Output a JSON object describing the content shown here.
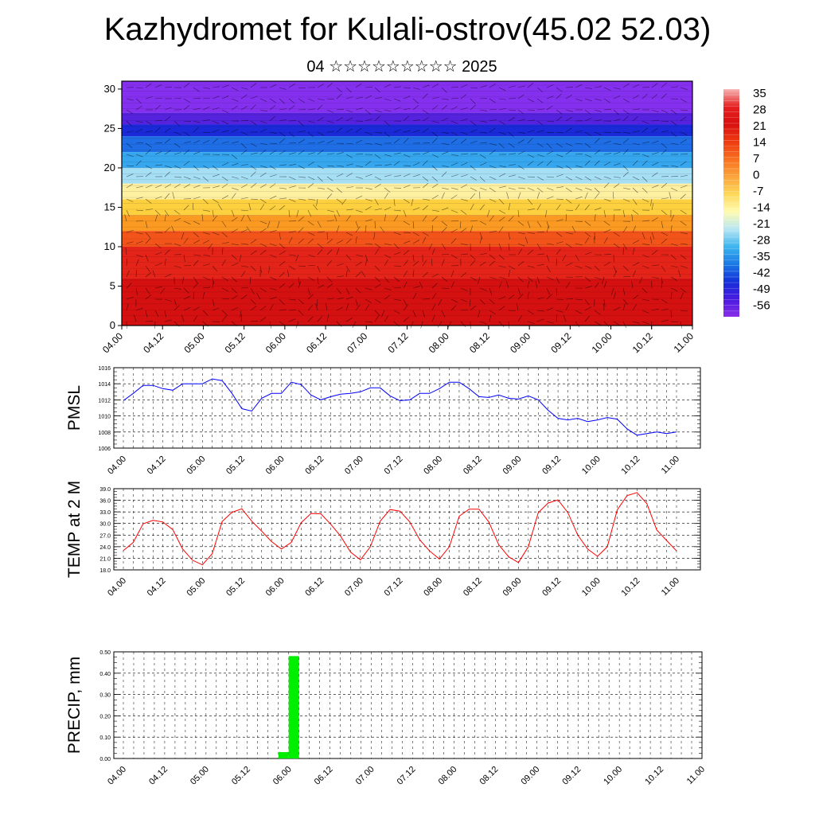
{
  "header": {
    "title": "Kazhydromet for Kulali-ostrov(45.02 52.03)",
    "subtitle": "04 ☆☆☆☆☆☆☆☆☆ 2025"
  },
  "colors": {
    "pmsl_line": "#0000ff",
    "temp_line": "#ff0000",
    "precip_bar": "#00ee00",
    "grid": "#000000"
  },
  "chart_data": [
    {
      "type": "heatmap",
      "name": "vertical-cross-section",
      "y_ticks": [
        0,
        5,
        10,
        15,
        20,
        25,
        30
      ],
      "ylim": [
        0,
        31
      ],
      "x_ticks": [
        "04.00",
        "04.12",
        "05.00",
        "05.12",
        "06.00",
        "06.12",
        "07.00",
        "07.12",
        "08.00",
        "08.12",
        "09.00",
        "09.12",
        "10.00",
        "10.12",
        "11.00"
      ],
      "colorbar": {
        "labels": [
          "35",
          "28",
          "21",
          "14",
          "7",
          "0",
          "-7",
          "-14",
          "-21",
          "-28",
          "-35",
          "-42",
          "-49",
          "-56"
        ],
        "colors": [
          "#f6b3b3",
          "#e62020",
          "#d81010",
          "#ee3a10",
          "#f87020",
          "#fba43a",
          "#fdd85a",
          "#fffbb0",
          "#b8e6f4",
          "#3cb4ee",
          "#1a78e6",
          "#1430d8",
          "#4a1ae0",
          "#8a2ee8"
        ]
      },
      "layers": [
        {
          "alt_range": [
            27,
            31
          ],
          "color": "#8530ee"
        },
        {
          "alt_range": [
            25.5,
            27
          ],
          "color": "#5522dd"
        },
        {
          "alt_range": [
            24,
            25.5
          ],
          "color": "#1a2ad8"
        },
        {
          "alt_range": [
            22,
            24
          ],
          "color": "#1f6ee6"
        },
        {
          "alt_range": [
            20,
            22
          ],
          "color": "#36a6ee"
        },
        {
          "alt_range": [
            18,
            20
          ],
          "color": "#a6dff4"
        },
        {
          "alt_range": [
            16,
            18
          ],
          "color": "#fdf0a0"
        },
        {
          "alt_range": [
            14,
            16
          ],
          "color": "#fdd040"
        },
        {
          "alt_range": [
            12,
            14
          ],
          "color": "#fb9a22"
        },
        {
          "alt_range": [
            10,
            12
          ],
          "color": "#f3541a"
        },
        {
          "alt_range": [
            6,
            10
          ],
          "color": "#e42418"
        },
        {
          "alt_range": [
            0,
            6
          ],
          "color": "#d51010"
        }
      ]
    },
    {
      "type": "line",
      "name": "pmsl",
      "ylabel": "PMSL",
      "ylim": [
        1006,
        1016
      ],
      "y_ticks": [
        "1006",
        "1008",
        "1010",
        "1012",
        "1014",
        "1016"
      ],
      "x_ticks": [
        "04.00",
        "04.12",
        "05.00",
        "05.12",
        "06.00",
        "06.12",
        "07.00",
        "07.12",
        "08.00",
        "08.12",
        "09.00",
        "09.12",
        "10.00",
        "10.12",
        "11.00"
      ],
      "x_hours": [
        0,
        3,
        6,
        9,
        12,
        15,
        18,
        21,
        24,
        27,
        30,
        33,
        36,
        39,
        42,
        45,
        48,
        51,
        54,
        57,
        60,
        63,
        66,
        69,
        72,
        75,
        78,
        81,
        84,
        87,
        90,
        93,
        96,
        99,
        102,
        105,
        108,
        111,
        114,
        117,
        120,
        123,
        126,
        129,
        132,
        135,
        138,
        141,
        144,
        147,
        150,
        153,
        156,
        159,
        162,
        165,
        168
      ],
      "values": [
        1011.9,
        1012.8,
        1013.8,
        1013.8,
        1013.4,
        1013.2,
        1014.0,
        1014.0,
        1014.0,
        1014.6,
        1014.4,
        1012.8,
        1010.9,
        1010.6,
        1012.2,
        1012.8,
        1012.8,
        1014.2,
        1013.9,
        1012.6,
        1012.0,
        1012.4,
        1012.7,
        1012.8,
        1013.0,
        1013.5,
        1013.5,
        1012.5,
        1011.9,
        1012.0,
        1012.8,
        1012.8,
        1013.4,
        1014.2,
        1014.2,
        1013.4,
        1012.4,
        1012.3,
        1012.6,
        1012.2,
        1012.1,
        1012.5,
        1012.0,
        1010.7,
        1009.7,
        1009.5,
        1009.7,
        1009.3,
        1009.5,
        1009.8,
        1009.6,
        1008.4,
        1007.6,
        1007.8,
        1008.0,
        1007.8,
        1008.0
      ]
    },
    {
      "type": "line",
      "name": "temp",
      "ylabel": "TEMP at 2 M",
      "ylim": [
        18,
        39
      ],
      "y_ticks": [
        "18.0",
        "21.0",
        "24.0",
        "27.0",
        "30.0",
        "33.0",
        "36.0",
        "39.0"
      ],
      "x_ticks": [
        "04.00",
        "04.12",
        "05.00",
        "05.12",
        "06.00",
        "06.12",
        "07.00",
        "07.12",
        "08.00",
        "08.12",
        "09.00",
        "09.12",
        "10.00",
        "10.12",
        "11.00"
      ],
      "x_hours": [
        0,
        3,
        6,
        9,
        12,
        15,
        18,
        21,
        24,
        27,
        30,
        33,
        36,
        39,
        42,
        45,
        48,
        51,
        54,
        57,
        60,
        63,
        66,
        69,
        72,
        75,
        78,
        81,
        84,
        87,
        90,
        93,
        96,
        99,
        102,
        105,
        108,
        111,
        114,
        117,
        120,
        123,
        126,
        129,
        132,
        135,
        138,
        141,
        144,
        147,
        150,
        153,
        156,
        159,
        162,
        165,
        168
      ],
      "values": [
        23.0,
        25.1,
        29.9,
        30.8,
        30.4,
        28.4,
        23.4,
        20.5,
        19.3,
        22.2,
        30.5,
        32.9,
        33.8,
        30.6,
        28.0,
        25.3,
        23.4,
        25.1,
        30.2,
        32.6,
        32.5,
        29.8,
        26.7,
        22.6,
        20.6,
        24.0,
        30.6,
        33.6,
        33.2,
        30.4,
        25.8,
        22.9,
        20.8,
        24.0,
        31.9,
        33.7,
        33.7,
        30.4,
        24.5,
        21.4,
        19.9,
        24.0,
        32.8,
        35.3,
        36.1,
        32.8,
        27.0,
        23.4,
        21.5,
        24.0,
        33.5,
        37.2,
        38.0,
        35.1,
        28.3,
        25.6,
        22.9
      ]
    },
    {
      "type": "bar",
      "name": "precip",
      "ylabel": "PRECIP, mm",
      "ylim": [
        0,
        0.5
      ],
      "y_ticks": [
        "0.00",
        "0.10",
        "0.20",
        "0.30",
        "0.40",
        "0.50"
      ],
      "x_ticks": [
        "04.00",
        "04.12",
        "05.00",
        "05.12",
        "06.00",
        "06.12",
        "07.00",
        "07.12",
        "08.00",
        "08.12",
        "09.00",
        "09.12",
        "10.00",
        "10.12",
        "11.00"
      ],
      "bars": [
        {
          "x_hours": [
            45,
            48
          ],
          "value": 0.03
        },
        {
          "x_hours": [
            48,
            51
          ],
          "value": 0.48
        }
      ]
    }
  ]
}
